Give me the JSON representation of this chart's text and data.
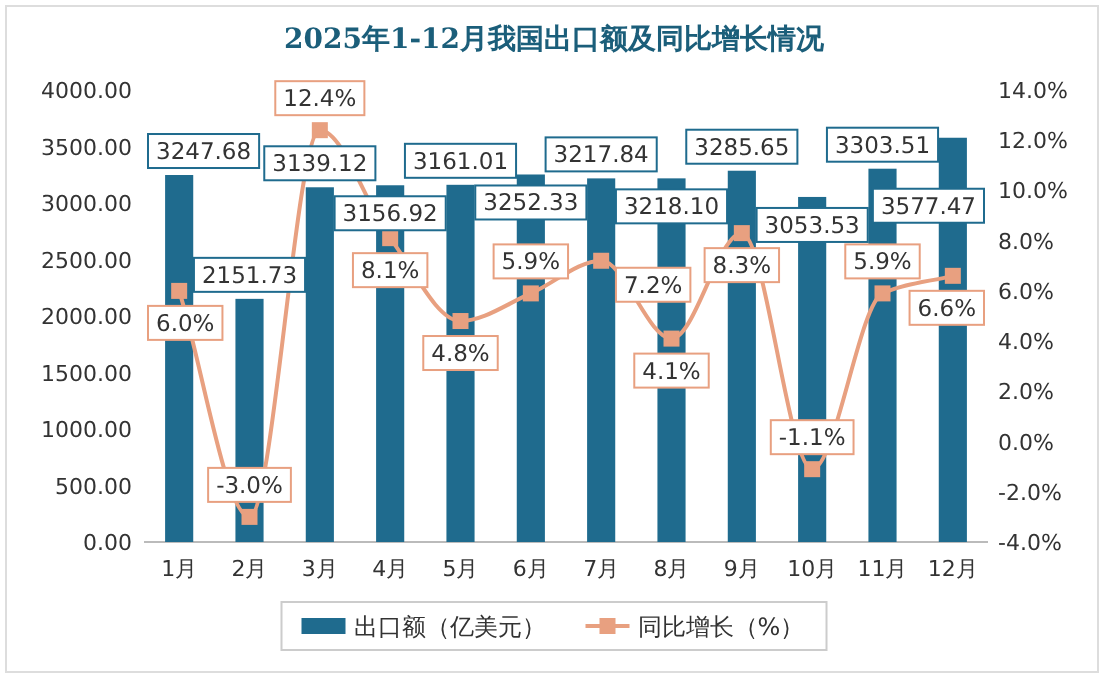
{
  "chart_data": {
    "type": "bar",
    "title": "2025年1-12月我国出口额及同比增长情况",
    "categories": [
      "1月",
      "2月",
      "3月",
      "4月",
      "5月",
      "6月",
      "7月",
      "8月",
      "9月",
      "10月",
      "11月",
      "12月"
    ],
    "series": [
      {
        "name": "出口额（亿美元）",
        "type": "bar",
        "color": "#1f6b8e",
        "values": [
          3247.68,
          2151.73,
          3139.12,
          3156.92,
          3161.01,
          3252.33,
          3217.84,
          3218.1,
          3285.65,
          3053.53,
          3303.51,
          3577.47
        ],
        "value_labels": [
          "3247.68",
          "2151.73",
          "3139.12",
          "3156.92",
          "3161.01",
          "3252.33",
          "3217.84",
          "3218.10",
          "3285.65",
          "3053.53",
          "3303.51",
          "3577.47"
        ]
      },
      {
        "name": "同比增长（%）",
        "type": "line",
        "axis": "y2",
        "color": "#e8a080",
        "marker": "square",
        "values": [
          6.0,
          -3.0,
          12.4,
          8.1,
          4.8,
          5.9,
          7.2,
          4.1,
          8.3,
          -1.1,
          5.9,
          6.6
        ],
        "value_labels": [
          "6.0%",
          "-3.0%",
          "12.4%",
          "8.1%",
          "4.8%",
          "5.9%",
          "7.2%",
          "4.1%",
          "8.3%",
          "-1.1%",
          "5.9%",
          "6.6%"
        ]
      }
    ],
    "ylim": [
      0,
      4000
    ],
    "yticks": [
      {
        "value": 0,
        "label": "0.00"
      },
      {
        "value": 500,
        "label": "500.00"
      },
      {
        "value": 1000,
        "label": "1000.00"
      },
      {
        "value": 1500,
        "label": "1500.00"
      },
      {
        "value": 2000,
        "label": "2000.00"
      },
      {
        "value": 2500,
        "label": "2500.00"
      },
      {
        "value": 3000,
        "label": "3000.00"
      },
      {
        "value": 3500,
        "label": "3500.00"
      },
      {
        "value": 4000,
        "label": "4000.00"
      }
    ],
    "y2lim": [
      -4,
      14
    ],
    "y2ticks": [
      {
        "value": -4,
        "label": "-4.0%"
      },
      {
        "value": -2,
        "label": "-2.0%"
      },
      {
        "value": 0,
        "label": "0.0%"
      },
      {
        "value": 2,
        "label": "2.0%"
      },
      {
        "value": 4,
        "label": "4.0%"
      },
      {
        "value": 6,
        "label": "6.0%"
      },
      {
        "value": 8,
        "label": "8.0%"
      },
      {
        "value": 10,
        "label": "10.0%"
      },
      {
        "value": 12,
        "label": "12.0%"
      },
      {
        "value": 14,
        "label": "14.0%"
      }
    ],
    "grid": false,
    "legend": "bottom"
  }
}
